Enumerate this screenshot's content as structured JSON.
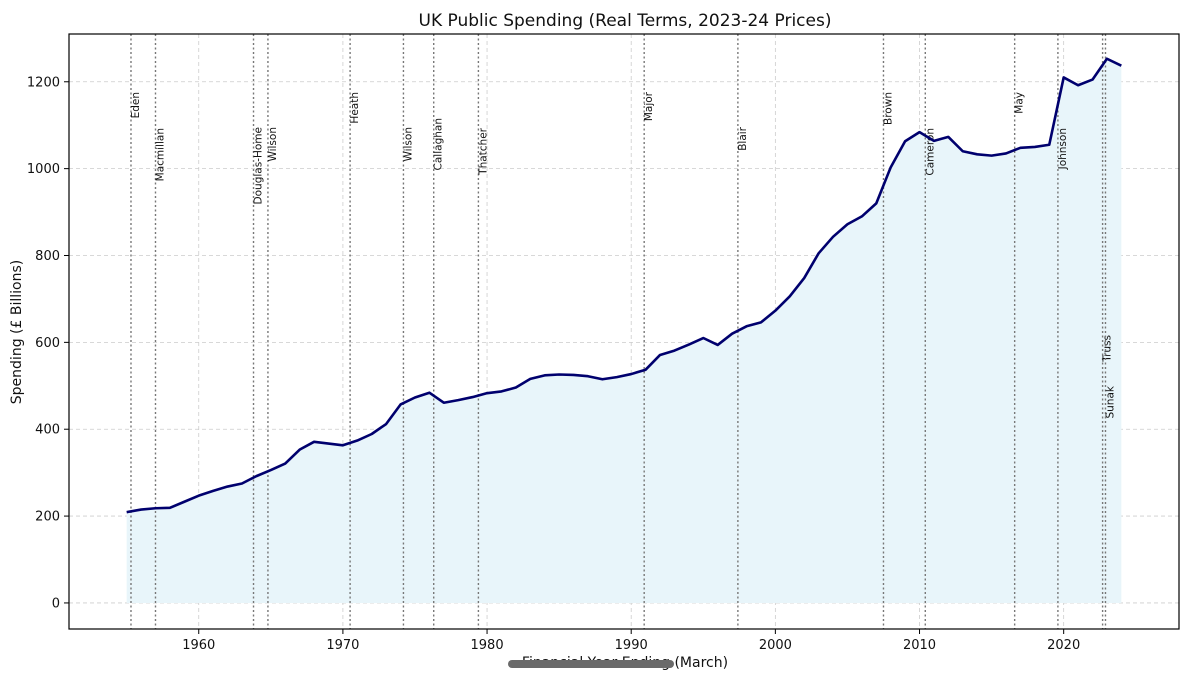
{
  "chart_data": {
    "type": "area",
    "title": "UK Public Spending (Real Terms, 2023-24 Prices)",
    "xlabel": "Financial Year Ending (March)",
    "ylabel": "Spending (£ Billions)",
    "xlim": [
      1951,
      2028
    ],
    "ylim": [
      -60,
      1310
    ],
    "xticks": [
      1960,
      1970,
      1980,
      1990,
      2000,
      2010,
      2020
    ],
    "yticks": [
      0,
      200,
      400,
      600,
      800,
      1000,
      1200
    ],
    "grid": true,
    "legend": "none",
    "colors": {
      "line": "#00006e",
      "fill": "#e8f5fa",
      "grid": "#cccccc",
      "pm_line": "#777777"
    },
    "series": [
      {
        "x": [
          1955,
          1956,
          1957,
          1958,
          1959,
          1960,
          1961,
          1962,
          1963,
          1964,
          1965,
          1966,
          1967,
          1968,
          1969,
          1970,
          1971,
          1972,
          1973,
          1974,
          1975,
          1976,
          1977,
          1978,
          1979,
          1980,
          1981,
          1982,
          1983,
          1984,
          1985,
          1986,
          1987,
          1988,
          1989,
          1990,
          1991,
          1992,
          1993,
          1994,
          1995,
          1996,
          1997,
          1998,
          1999,
          2000,
          2001,
          2002,
          2003,
          2004,
          2005,
          2006,
          2007,
          2008,
          2009,
          2010,
          2011,
          2012,
          2013,
          2014,
          2015,
          2016,
          2017,
          2018,
          2019,
          2020,
          2021,
          2022,
          2023,
          2024
        ],
        "values": [
          209,
          215,
          218,
          219,
          233,
          247,
          258,
          268,
          275,
          292,
          306,
          321,
          353,
          371,
          367,
          363,
          374,
          389,
          412,
          457,
          473,
          484,
          461,
          467,
          474,
          483,
          487,
          496,
          516,
          524,
          526,
          525,
          522,
          515,
          520,
          527,
          537,
          571,
          581,
          595,
          610,
          594,
          620,
          637,
          646,
          673,
          706,
          748,
          805,
          843,
          872,
          890,
          920,
          1003,
          1063,
          1084,
          1064,
          1073,
          1040,
          1033,
          1030,
          1035,
          1048,
          1050,
          1055,
          1210,
          1192,
          1205,
          1253,
          1237
        ]
      }
    ],
    "pm_changes": [
      {
        "year": 1955.3,
        "name": "Eden",
        "row": "top"
      },
      {
        "year": 1957.0,
        "name": "Macmillan",
        "row": "low"
      },
      {
        "year": 1963.8,
        "name": "Douglas-Home",
        "row": "mid"
      },
      {
        "year": 1964.8,
        "name": "Wilson",
        "row": "mid"
      },
      {
        "year": 1970.5,
        "name": "Heath",
        "row": "top"
      },
      {
        "year": 1974.2,
        "name": "Wilson",
        "row": "mid"
      },
      {
        "year": 1976.3,
        "name": "Callaghan",
        "row": "upper"
      },
      {
        "year": 1979.4,
        "name": "Thatcher",
        "row": "low"
      },
      {
        "year": 1990.9,
        "name": "Major",
        "row": "top"
      },
      {
        "year": 1997.4,
        "name": "Blair",
        "row": "mid"
      },
      {
        "year": 2007.5,
        "name": "Brown",
        "row": "top"
      },
      {
        "year": 2010.4,
        "name": "Cameron",
        "row": "low"
      },
      {
        "year": 2016.6,
        "name": "May",
        "row": "top"
      },
      {
        "year": 2019.6,
        "name": "Johnson",
        "row": "low"
      },
      {
        "year": 2022.7,
        "name": "Truss",
        "row": "truss"
      },
      {
        "year": 2022.9,
        "name": "Sunak",
        "row": "sunak"
      }
    ]
  }
}
